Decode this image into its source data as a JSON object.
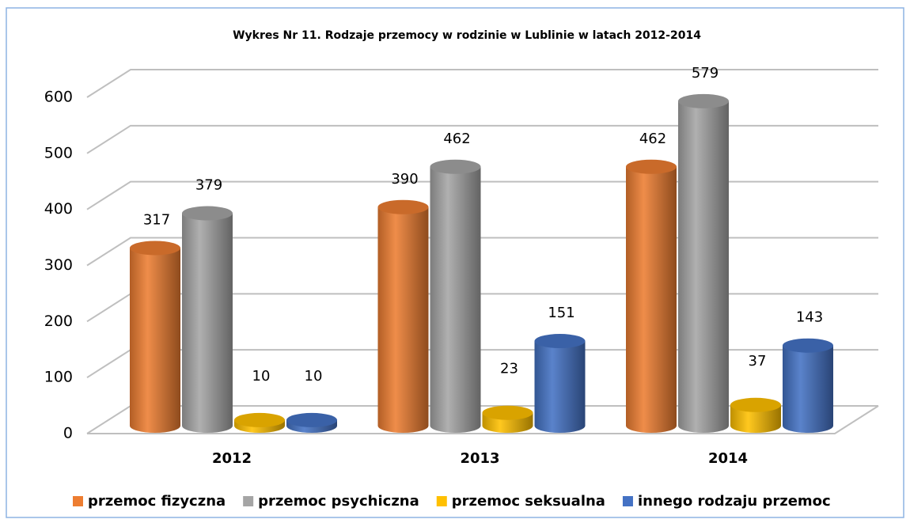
{
  "chart_data": {
    "type": "bar3d",
    "title": "Wykres Nr 11.  Rodzaje przemocy w rodzinie w Lublinie w latach 2012-2014",
    "categories": [
      "2012",
      "2013",
      "2014"
    ],
    "series": [
      {
        "name": "przemoc fizyczna",
        "color": "#ED7D31",
        "values": [
          317,
          390,
          462
        ]
      },
      {
        "name": "przemoc psychiczna",
        "color": "#A5A5A5",
        "values": [
          379,
          462,
          579
        ]
      },
      {
        "name": "przemoc seksualna",
        "color": "#FFC000",
        "values": [
          10,
          23,
          37
        ]
      },
      {
        "name": "innego rodzaju przemoc",
        "color": "#4472C4",
        "values": [
          10,
          151,
          143
        ]
      }
    ],
    "ylim": [
      0,
      600
    ],
    "yticks": [
      0,
      100,
      200,
      300,
      400,
      500,
      600
    ],
    "grid": true,
    "legend": "bottom"
  }
}
